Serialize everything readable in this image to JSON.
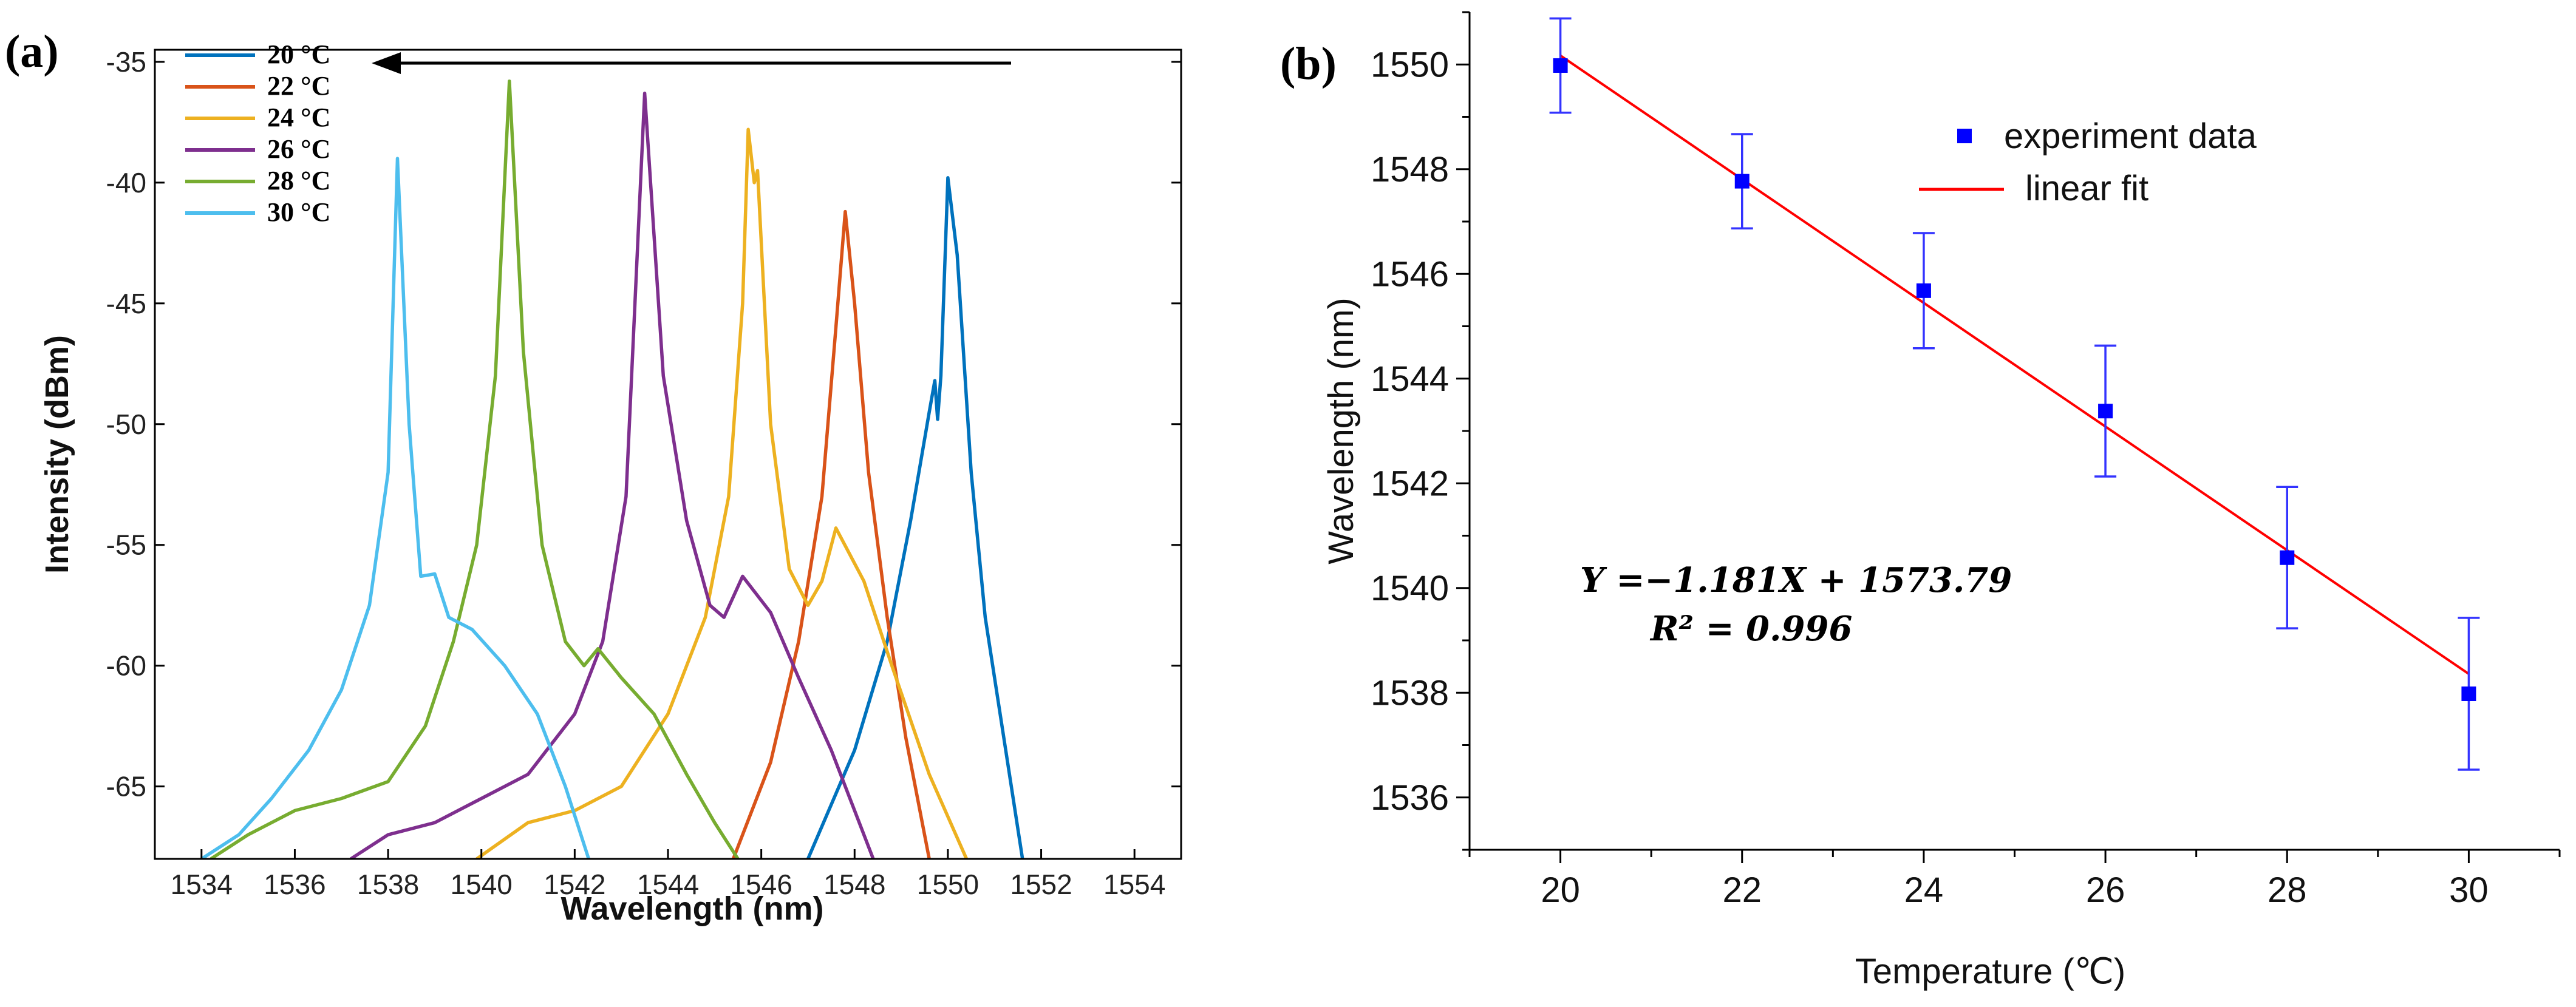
{
  "chart_data": [
    {
      "panel": "(a)",
      "type": "line",
      "title": "",
      "xlabel": "Wavelength (nm)",
      "ylabel": "Intensity (dBm)",
      "xlim": [
        1533,
        1555
      ],
      "ylim": [
        -68,
        -34.5
      ],
      "xticks": [
        1534,
        1536,
        1538,
        1540,
        1542,
        1544,
        1546,
        1548,
        1550,
        1552,
        1554
      ],
      "yticks": [
        -35,
        -40,
        -45,
        -50,
        -55,
        -60,
        -65
      ],
      "annotation": "arrow pointing toward shorter wavelength with increasing temperature",
      "series": [
        {
          "name": "20 °C",
          "color": "#0072BD",
          "points": [
            [
              1547.0,
              -68
            ],
            [
              1548.0,
              -63.5
            ],
            [
              1548.7,
              -59
            ],
            [
              1549.2,
              -54
            ],
            [
              1549.6,
              -49.5
            ],
            [
              1549.72,
              -48.2
            ],
            [
              1549.78,
              -49.8
            ],
            [
              1549.85,
              -48.0
            ],
            [
              1550.0,
              -39.8
            ],
            [
              1550.2,
              -43
            ],
            [
              1550.5,
              -52
            ],
            [
              1550.8,
              -58
            ],
            [
              1551.2,
              -63
            ],
            [
              1551.6,
              -68
            ]
          ]
        },
        {
          "name": "22 °C",
          "color": "#D95319",
          "points": [
            [
              1545.4,
              -68
            ],
            [
              1546.2,
              -64
            ],
            [
              1546.8,
              -59
            ],
            [
              1547.3,
              -53
            ],
            [
              1547.6,
              -46
            ],
            [
              1547.8,
              -41.2
            ],
            [
              1548.0,
              -45
            ],
            [
              1548.3,
              -52
            ],
            [
              1548.7,
              -58
            ],
            [
              1549.1,
              -63
            ],
            [
              1549.6,
              -68
            ]
          ]
        },
        {
          "name": "24 °C",
          "color": "#EDB120",
          "points": [
            [
              1539.9,
              -68
            ],
            [
              1541.0,
              -66.5
            ],
            [
              1542.0,
              -66
            ],
            [
              1543.0,
              -65
            ],
            [
              1544.0,
              -62
            ],
            [
              1544.8,
              -58
            ],
            [
              1545.3,
              -53
            ],
            [
              1545.6,
              -45
            ],
            [
              1545.72,
              -37.8
            ],
            [
              1545.85,
              -40
            ],
            [
              1545.92,
              -39.5
            ],
            [
              1546.2,
              -50
            ],
            [
              1546.6,
              -56
            ],
            [
              1547.0,
              -57.5
            ],
            [
              1547.3,
              -56.5
            ],
            [
              1547.6,
              -54.3
            ],
            [
              1548.2,
              -56.5
            ],
            [
              1548.8,
              -60
            ],
            [
              1549.6,
              -64.5
            ],
            [
              1550.4,
              -68
            ]
          ]
        },
        {
          "name": "26 °C",
          "color": "#7E2F8E",
          "points": [
            [
              1537.2,
              -68
            ],
            [
              1538.0,
              -67
            ],
            [
              1539.0,
              -66.5
            ],
            [
              1540.0,
              -65.5
            ],
            [
              1541.0,
              -64.5
            ],
            [
              1542.0,
              -62
            ],
            [
              1542.6,
              -59
            ],
            [
              1543.1,
              -53
            ],
            [
              1543.5,
              -36.3
            ],
            [
              1543.9,
              -48
            ],
            [
              1544.4,
              -54
            ],
            [
              1544.9,
              -57.5
            ],
            [
              1545.2,
              -58
            ],
            [
              1545.6,
              -56.3
            ],
            [
              1546.2,
              -57.8
            ],
            [
              1546.8,
              -60.5
            ],
            [
              1547.5,
              -63.5
            ],
            [
              1548.0,
              -66
            ],
            [
              1548.4,
              -68
            ]
          ]
        },
        {
          "name": "28 °C",
          "color": "#77AC30",
          "points": [
            [
              1534.2,
              -68
            ],
            [
              1535.0,
              -67
            ],
            [
              1536.0,
              -66
            ],
            [
              1537.0,
              -65.5
            ],
            [
              1538.0,
              -64.8
            ],
            [
              1538.8,
              -62.5
            ],
            [
              1539.4,
              -59
            ],
            [
              1539.9,
              -55
            ],
            [
              1540.3,
              -48
            ],
            [
              1540.6,
              -35.8
            ],
            [
              1540.9,
              -47
            ],
            [
              1541.3,
              -55
            ],
            [
              1541.8,
              -59
            ],
            [
              1542.2,
              -60
            ],
            [
              1542.5,
              -59.3
            ],
            [
              1543.0,
              -60.5
            ],
            [
              1543.7,
              -62
            ],
            [
              1544.4,
              -64.5
            ],
            [
              1545.0,
              -66.5
            ],
            [
              1545.5,
              -68
            ]
          ]
        },
        {
          "name": "30 °C",
          "color": "#4DBEEE",
          "points": [
            [
              1534.0,
              -68
            ],
            [
              1534.8,
              -67
            ],
            [
              1535.5,
              -65.5
            ],
            [
              1536.3,
              -63.5
            ],
            [
              1537.0,
              -61
            ],
            [
              1537.6,
              -57.5
            ],
            [
              1538.0,
              -52
            ],
            [
              1538.2,
              -39
            ],
            [
              1538.45,
              -50
            ],
            [
              1538.7,
              -56.3
            ],
            [
              1539.0,
              -56.2
            ],
            [
              1539.3,
              -58
            ],
            [
              1539.8,
              -58.5
            ],
            [
              1540.5,
              -60
            ],
            [
              1541.2,
              -62
            ],
            [
              1541.8,
              -65
            ],
            [
              1542.3,
              -68
            ]
          ]
        }
      ]
    },
    {
      "panel": "(b)",
      "type": "scatter",
      "title": "",
      "xlabel": "Temperature (℃)",
      "ylabel": "Wavelength (nm)",
      "xlim": [
        19,
        31
      ],
      "ylim": [
        1535,
        1551
      ],
      "xticks": [
        20,
        22,
        24,
        26,
        28,
        30
      ],
      "yticks": [
        1536,
        1538,
        1540,
        1542,
        1544,
        1546,
        1548,
        1550
      ],
      "series": [
        {
          "name": "experiment data",
          "color": "#0000FF",
          "x": [
            20,
            22,
            24,
            26,
            28,
            30
          ],
          "y": [
            1549.98,
            1547.77,
            1545.68,
            1543.38,
            1540.58,
            1537.98
          ],
          "err": [
            0.9,
            0.9,
            1.1,
            1.25,
            1.35,
            1.45
          ]
        },
        {
          "name": "linear fit",
          "color": "#FF0000",
          "slope": -1.181,
          "intercept": 1573.79,
          "x": [
            20,
            30
          ]
        }
      ],
      "equation_line1": "Y =−1.181X + 1573.79",
      "equation_line2": "R² = 0.996"
    }
  ]
}
